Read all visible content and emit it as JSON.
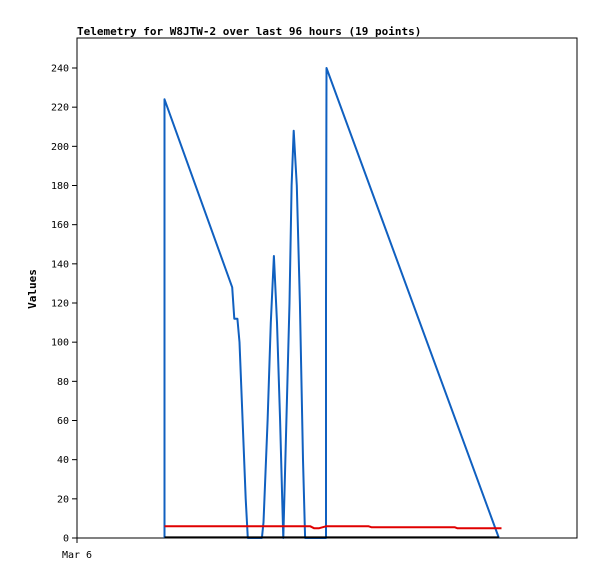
{
  "chart_data": {
    "type": "line",
    "title": "Telemetry for W8JTW-2 over last 96 hours (19 points)",
    "xlabel": "",
    "ylabel": "Values",
    "ylim": [
      0,
      255
    ],
    "xlim": [
      0,
      96
    ],
    "y_ticks": [
      0,
      20,
      40,
      60,
      80,
      100,
      120,
      140,
      160,
      180,
      200,
      220,
      240
    ],
    "x_tick_labels": [
      {
        "x": 0,
        "label": "Mar 6"
      }
    ],
    "grid": false,
    "colors": {
      "blue": "#1060c0",
      "red": "#e00000",
      "black": "#000000"
    },
    "series": [
      {
        "color": "#1060c0",
        "points": [
          [
            16.8,
            0
          ],
          [
            16.8,
            224
          ],
          [
            29.8,
            128
          ],
          [
            30.2,
            112
          ],
          [
            30.8,
            112
          ],
          [
            31.2,
            100
          ],
          [
            31.8,
            60
          ],
          [
            32.4,
            20
          ],
          [
            32.8,
            0
          ],
          [
            35.5,
            0
          ],
          [
            35.8,
            8
          ],
          [
            36.6,
            60
          ],
          [
            37.2,
            110
          ],
          [
            37.8,
            144
          ],
          [
            38.4,
            110
          ],
          [
            39.0,
            60
          ],
          [
            39.4,
            20
          ],
          [
            39.6,
            0
          ],
          [
            40.2,
            60
          ],
          [
            40.8,
            120
          ],
          [
            41.2,
            180
          ],
          [
            41.6,
            208
          ],
          [
            42.2,
            180
          ],
          [
            42.8,
            120
          ],
          [
            43.4,
            40
          ],
          [
            43.8,
            0
          ],
          [
            47.8,
            0
          ],
          [
            47.8,
            120
          ],
          [
            47.9,
            240
          ],
          [
            81.0,
            0
          ]
        ]
      },
      {
        "color": "#e00000",
        "points": [
          [
            16.8,
            6
          ],
          [
            43.8,
            6
          ],
          [
            44.8,
            6
          ],
          [
            45.5,
            5
          ],
          [
            46.5,
            5
          ],
          [
            47.8,
            6
          ],
          [
            56.0,
            6
          ],
          [
            56.5,
            5.5
          ],
          [
            72.5,
            5.5
          ],
          [
            73.0,
            5
          ],
          [
            81.5,
            5
          ]
        ]
      },
      {
        "color": "#000000",
        "points": [
          [
            16.8,
            0.3
          ],
          [
            81.0,
            0.3
          ]
        ]
      }
    ]
  }
}
